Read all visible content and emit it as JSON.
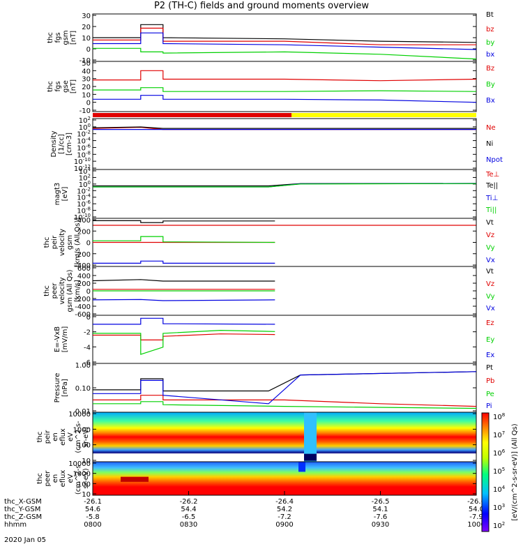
{
  "title": "P2 (TH-C) fields and ground moments overview",
  "date": "2020 Jan 05",
  "colors": {
    "black": "#000000",
    "red": "#e00000",
    "green": "#00d000",
    "blue": "#0000e0",
    "yellow": "#ffff00"
  },
  "x_axis": {
    "row_labels": [
      "thc_X-GSM",
      "thc_Y-GSM",
      "thc_Z-GSM",
      "hhmm"
    ],
    "ticks": [
      {
        "time": "0800",
        "rows": [
          "-26.1",
          "54.6",
          "-5.8",
          "0800"
        ]
      },
      {
        "time": "0830",
        "rows": [
          "-26.2",
          "54.4",
          "-6.5",
          "0830"
        ]
      },
      {
        "time": "0900",
        "rows": [
          "-26.4",
          "54.2",
          "-7.2",
          "0900"
        ]
      },
      {
        "time": "0930",
        "rows": [
          "-26.5",
          "54.1",
          "-7.6",
          "0930"
        ]
      },
      {
        "time": "1000",
        "rows": [
          "-26.6",
          "54.0",
          "-7.9",
          "1000"
        ]
      }
    ]
  },
  "colorbar": {
    "label": "[eV/(cm^2-s-sr-eV)] (All Qs)",
    "ticks": [
      "10^8",
      "10^7",
      "10^6",
      "10^5",
      "10^4",
      "10^3",
      "10^2"
    ]
  },
  "chart_data": [
    {
      "type": "line",
      "id": "fgs-gsm",
      "ylabel": [
        "thc",
        "fgs",
        "gsm",
        "[nT]"
      ],
      "ylim": [
        -10,
        30
      ],
      "yticks": [
        "30",
        "20",
        "10",
        "0",
        "-10"
      ],
      "series": [
        {
          "name": "Bt",
          "color": "black",
          "x": [
            "0800",
            "0815",
            "0815",
            "0822",
            "0822",
            "0900",
            "0930",
            "1000"
          ],
          "y": [
            10,
            10,
            21,
            21,
            10,
            9,
            7,
            6
          ]
        },
        {
          "name": "bz",
          "color": "red",
          "x": [
            "0800",
            "0815",
            "0815",
            "0822",
            "0822",
            "0900",
            "0930",
            "1000"
          ],
          "y": [
            8,
            8,
            18,
            18,
            7,
            7,
            4,
            4
          ]
        },
        {
          "name": "by",
          "color": "green",
          "x": [
            "0800",
            "0815",
            "0815",
            "0822",
            "0822",
            "0900",
            "0930",
            "1000"
          ],
          "y": [
            1,
            1,
            -2,
            -2,
            -3,
            -2,
            -4,
            -8
          ]
        },
        {
          "name": "bx",
          "color": "blue",
          "x": [
            "0800",
            "0815",
            "0815",
            "0822",
            "0822",
            "0900",
            "0930",
            "1000"
          ],
          "y": [
            5,
            5,
            14,
            14,
            5,
            4,
            2,
            0
          ]
        }
      ]
    },
    {
      "type": "line",
      "id": "fgs-gse",
      "ylabel": [
        "thc",
        "fgs",
        "gse",
        "[nT]"
      ],
      "ylim": [
        -15,
        50
      ],
      "yticks": [
        "50",
        "40",
        "30",
        "20",
        "10",
        "0",
        "-10"
      ],
      "series": [
        {
          "name": "Bz",
          "color": "red",
          "x": [
            "0800",
            "0815",
            "0815",
            "0822",
            "0822",
            "0900",
            "0930",
            "1000"
          ],
          "y": [
            26,
            26,
            38,
            38,
            27,
            27,
            25,
            27
          ]
        },
        {
          "name": "By",
          "color": "green",
          "x": [
            "0800",
            "0815",
            "0815",
            "0822",
            "0822",
            "0900",
            "0930",
            "1000"
          ],
          "y": [
            13,
            13,
            16,
            16,
            11,
            11,
            12,
            11
          ]
        },
        {
          "name": "Bx",
          "color": "blue",
          "x": [
            "0800",
            "0815",
            "0815",
            "0822",
            "0822",
            "0900",
            "0930",
            "1000"
          ],
          "y": [
            1,
            1,
            6,
            6,
            1,
            1,
            0,
            -3
          ]
        }
      ]
    },
    {
      "type": "line",
      "id": "density",
      "scale": "log",
      "ylabel": [
        "Density",
        "[1/cc]",
        "[cm-3]"
      ],
      "ylim": [
        -12,
        2
      ],
      "yticks": [
        "10^2",
        "10^0",
        "10^-2",
        "10^-4",
        "10^-6",
        "10^-8",
        "10^-10",
        "10^-12"
      ],
      "series": [
        {
          "name": "Ne",
          "color": "red",
          "x": [
            "0800",
            "0815",
            "0822",
            "0900",
            "0930",
            "1000"
          ],
          "y": [
            0.2,
            0.4,
            0.1,
            0.1,
            0.1,
            0.1
          ]
        },
        {
          "name": "Ni",
          "color": "black",
          "x": [
            "0800",
            "0815",
            "0822",
            "0900",
            "0930",
            "1000"
          ],
          "y": [
            0.3,
            0.5,
            0.2,
            0.2,
            0.2,
            0.2
          ]
        },
        {
          "name": "Npot",
          "color": "blue",
          "x": [
            "0800",
            "1000"
          ],
          "y": [
            0.1,
            0.1
          ]
        }
      ]
    },
    {
      "type": "line",
      "id": "temperature",
      "scale": "log",
      "ylabel": [
        "magt3",
        "[eV]"
      ],
      "ylim": [
        -10,
        4
      ],
      "yticks": [
        "10^4",
        "10^2",
        "10^0",
        "10^-2",
        "10^-4",
        "10^-6",
        "10^-8",
        "10^-10"
      ],
      "series": [
        {
          "name": "Te⊥",
          "color": "red",
          "x": [
            "0800",
            "1000"
          ],
          "y": [
            0.0,
            0.0
          ]
        },
        {
          "name": "Te||",
          "color": "black",
          "x": [
            "0800",
            "0855",
            "0905",
            "1000"
          ],
          "y": [
            0.2,
            0.2,
            0.9,
            1.0
          ]
        },
        {
          "name": "Ti⊥",
          "color": "blue",
          "x": [
            "0800",
            "0855",
            "0905",
            "1000"
          ],
          "y": [
            0.1,
            0.1,
            0.8,
            1.0
          ]
        },
        {
          "name": "Ti||",
          "color": "green",
          "x": [
            "0800",
            "0855",
            "0905",
            "1000"
          ],
          "y": [
            0.1,
            0.1,
            0.7,
            0.9
          ]
        }
      ]
    },
    {
      "type": "line",
      "id": "peir-velocity",
      "ylabel": [
        "thc",
        "peir",
        "velocity",
        "gsm",
        "[km/s (All Qs)]"
      ],
      "ylim": [
        -450,
        450
      ],
      "yticks": [
        "400",
        "200",
        "0",
        "-200",
        "-400"
      ],
      "series": [
        {
          "name": "Vt",
          "color": "black",
          "x": [
            "0800",
            "0815",
            "0815",
            "0822",
            "0822",
            "0857"
          ],
          "y": [
            405,
            405,
            370,
            370,
            400,
            400
          ]
        },
        {
          "name": "Vz",
          "color": "red",
          "x": [
            "0800",
            "0857"
          ],
          "y": [
            0,
            0
          ]
        },
        {
          "name": "Vy",
          "color": "green",
          "x": [
            "0800",
            "0815",
            "0815",
            "0822",
            "0822",
            "0857"
          ],
          "y": [
            30,
            30,
            110,
            110,
            10,
            0
          ]
        },
        {
          "name": "Vx",
          "color": "blue",
          "x": [
            "0800",
            "0815",
            "0815",
            "0822",
            "0822",
            "0857"
          ],
          "y": [
            -390,
            -390,
            -350,
            -350,
            -390,
            -390
          ]
        }
      ]
    },
    {
      "type": "line",
      "id": "peer-velocity",
      "ylabel": [
        "thc",
        "peer",
        "velocity",
        "gsm (All Qs)",
        "[km/s]"
      ],
      "ylim": [
        -650,
        650
      ],
      "yticks": [
        "600",
        "400",
        "200",
        "0",
        "-200",
        "-400",
        "-600"
      ],
      "series": [
        {
          "name": "Vt",
          "color": "black",
          "x": [
            "0800",
            "0815",
            "0822",
            "0857"
          ],
          "y": [
            270,
            300,
            260,
            260
          ]
        },
        {
          "name": "Vz",
          "color": "red",
          "x": [
            "0800",
            "0857"
          ],
          "y": [
            40,
            40
          ]
        },
        {
          "name": "Vy",
          "color": "green",
          "x": [
            "0800",
            "0857"
          ],
          "y": [
            0,
            0
          ]
        },
        {
          "name": "Vx",
          "color": "blue",
          "x": [
            "0800",
            "0815",
            "0822",
            "0857"
          ],
          "y": [
            -240,
            -230,
            -260,
            -240
          ]
        }
      ]
    },
    {
      "type": "line",
      "id": "efield",
      "ylabel": [
        "E=-VxB",
        "[mV/m]"
      ],
      "ylim": [
        -6.5,
        1.5
      ],
      "yticks": [
        "0",
        "-2",
        "-4",
        "-6"
      ],
      "series": [
        {
          "name": "Ez",
          "color": "red",
          "x": [
            "0800",
            "0815",
            "0815",
            "0822",
            "0822",
            "0840",
            "0857"
          ],
          "y": [
            -1.8,
            -1.8,
            -2.6,
            -2.6,
            -2.0,
            -1.6,
            -1.7
          ]
        },
        {
          "name": "Ey",
          "color": "green",
          "x": [
            "0800",
            "0815",
            "0815",
            "0822",
            "0822",
            "0840",
            "0857"
          ],
          "y": [
            -1.5,
            -1.5,
            -5.0,
            -3.8,
            -1.5,
            -1.0,
            -1.2
          ]
        },
        {
          "name": "Ex",
          "color": "blue",
          "x": [
            "0800",
            "0815",
            "0815",
            "0822",
            "0822",
            "0857"
          ],
          "y": [
            0.0,
            0.0,
            1.0,
            1.0,
            0.1,
            0.0
          ]
        }
      ]
    },
    {
      "type": "line",
      "id": "pressure",
      "scale": "log",
      "ylabel": [
        "Pressure",
        "[nPa]"
      ],
      "ylim": [
        -2.1,
        0.2
      ],
      "yticks": [
        "1.00",
        "0.10",
        "0.01"
      ],
      "series": [
        {
          "name": "Pt",
          "color": "black",
          "x": [
            "0800",
            "0815",
            "0815",
            "0822",
            "0822",
            "0855",
            "0905",
            "1000"
          ],
          "y": [
            0.09,
            0.09,
            0.3,
            0.3,
            0.08,
            0.08,
            0.45,
            0.65
          ]
        },
        {
          "name": "Pb",
          "color": "red",
          "x": [
            "0800",
            "0815",
            "0815",
            "0822",
            "0822",
            "0900",
            "0930",
            "1000"
          ],
          "y": [
            0.03,
            0.03,
            0.05,
            0.05,
            0.03,
            0.03,
            0.02,
            0.015
          ]
        },
        {
          "name": "Pe",
          "color": "green",
          "x": [
            "0800",
            "0815",
            "0815",
            "0822",
            "0822",
            "0900",
            "1000"
          ],
          "y": [
            0.02,
            0.02,
            0.025,
            0.025,
            0.018,
            0.015,
            0.012
          ]
        },
        {
          "name": "Pi",
          "color": "blue",
          "x": [
            "0800",
            "0815",
            "0815",
            "0822",
            "0822",
            "0855",
            "0905",
            "1000"
          ],
          "y": [
            0.06,
            0.06,
            0.25,
            0.25,
            0.05,
            0.02,
            0.45,
            0.65
          ]
        }
      ]
    },
    {
      "type": "heatmap",
      "id": "peir-eflux",
      "ylabel": [
        "thc",
        "peir",
        "en",
        "eflux",
        "eV",
        "(cm^2-s-",
        "sr-eV)"
      ],
      "ylim": [
        5,
        20000
      ],
      "yticks": [
        "10000",
        "1000",
        "100",
        "10"
      ]
    },
    {
      "type": "heatmap",
      "id": "peer-eflux",
      "ylabel": [
        "thc",
        "peer",
        "en",
        "eflux",
        "eV",
        "(cm^2-s-",
        "sr-eV)"
      ],
      "ylim": [
        5,
        20000
      ],
      "yticks": [
        "10000",
        "1000",
        "100",
        "10"
      ]
    }
  ]
}
